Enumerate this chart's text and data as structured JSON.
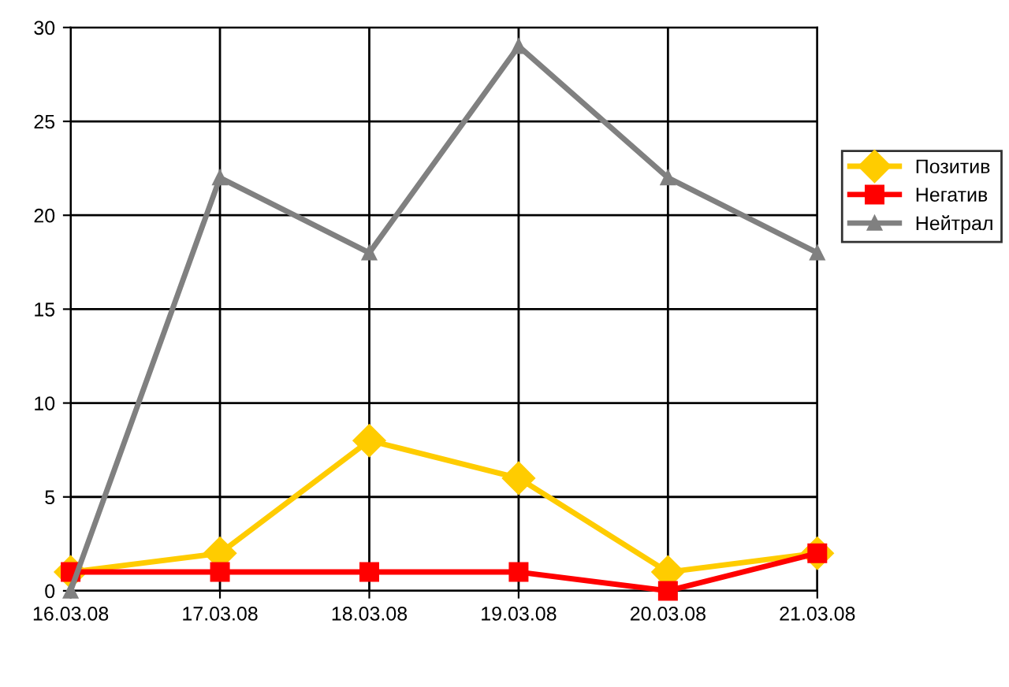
{
  "chart_data": {
    "type": "line",
    "categories": [
      "16.03.08",
      "17.03.08",
      "18.03.08",
      "19.03.08",
      "20.03.08",
      "21.03.08"
    ],
    "series": [
      {
        "name": "Позитив",
        "color": "#ffcc00",
        "marker": "diamond",
        "values": [
          1,
          2,
          8,
          6,
          1,
          2
        ]
      },
      {
        "name": "Негатив",
        "color": "#ff0000",
        "marker": "square",
        "values": [
          1,
          1,
          1,
          1,
          0,
          2
        ]
      },
      {
        "name": "Нейтрал",
        "color": "#808080",
        "marker": "triangle",
        "values": [
          0,
          22,
          18,
          29,
          22,
          18
        ]
      }
    ],
    "ylim": [
      0,
      30
    ],
    "yticks": [
      0,
      5,
      10,
      15,
      20,
      25,
      30
    ],
    "grid": true,
    "legend": "right",
    "line_style": "solid"
  }
}
